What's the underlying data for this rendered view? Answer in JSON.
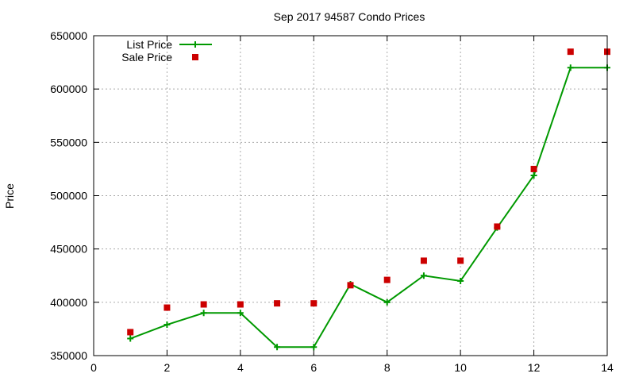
{
  "chart_data": {
    "type": "line",
    "title": "Sep 2017 94587 Condo Prices",
    "xlabel": "",
    "ylabel": "Price",
    "xlim": [
      0,
      14
    ],
    "ylim": [
      350000,
      650000
    ],
    "xticks": [
      0,
      2,
      4,
      6,
      8,
      10,
      12,
      14
    ],
    "yticks": [
      350000,
      400000,
      450000,
      500000,
      550000,
      600000,
      650000
    ],
    "grid": true,
    "legend_position": "top-left",
    "series": [
      {
        "name": "List Price",
        "style": "line+crosses",
        "color": "#009900",
        "x": [
          1,
          2,
          3,
          4,
          5,
          6,
          7,
          8,
          9,
          10,
          11,
          12,
          13,
          14
        ],
        "y": [
          366000,
          379000,
          390000,
          390000,
          358000,
          358000,
          417000,
          400000,
          425000,
          420000,
          470000,
          519000,
          620000,
          620000
        ]
      },
      {
        "name": "Sale Price",
        "style": "squares",
        "color": "#cc0000",
        "x": [
          1,
          2,
          3,
          4,
          5,
          6,
          7,
          8,
          9,
          10,
          11,
          12,
          13,
          14
        ],
        "y": [
          372000,
          395000,
          398000,
          398000,
          399000,
          399000,
          416000,
          421000,
          439000,
          439000,
          471000,
          525000,
          635000,
          635000
        ]
      }
    ]
  }
}
